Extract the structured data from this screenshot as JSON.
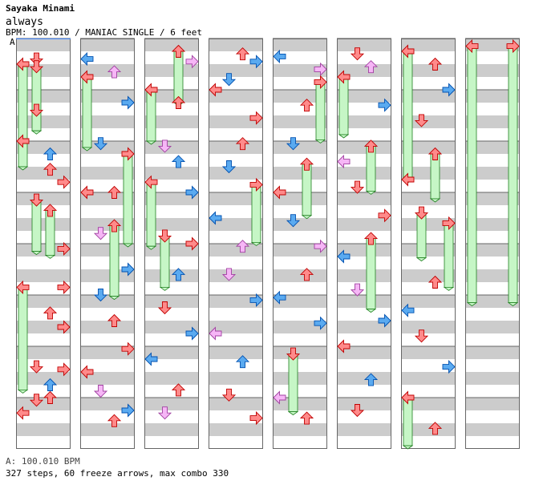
{
  "header": {
    "artist": "Sayaka Minami",
    "title": "always",
    "bpm_line": "BPM: 100.010 / MANIAC SINGLE / 6 feet",
    "marker": "A"
  },
  "footer": {
    "bpm": "A: 100.010 BPM",
    "stats": "327 steps, 60 freeze arrows, max combo 330"
  },
  "colors": {
    "red": "#ff8a8a",
    "red_stroke": "#c00000",
    "blue": "#5aaaf0",
    "blue_stroke": "#0050b0",
    "pink": "#f6b6f6",
    "pink_stroke": "#a040a0",
    "freeze_fill": "#c6f6c6",
    "freeze_stroke": "#208020",
    "stripe": "#cccccc"
  },
  "chart": {
    "lanes": [
      "left",
      "down",
      "up",
      "right"
    ],
    "columns": [
      {
        "notes": [
          {
            "t": 0.16,
            "lane": 1,
            "kind": "red"
          },
          {
            "t": 0.2,
            "lane": 0,
            "kind": "freeze",
            "len": 0.8
          },
          {
            "t": 0.22,
            "lane": 1,
            "kind": "freeze",
            "len": 0.5
          },
          {
            "t": 0.56,
            "lane": 1,
            "kind": "red"
          },
          {
            "t": 0.8,
            "lane": 0,
            "kind": "red"
          },
          {
            "t": 0.9,
            "lane": 2,
            "kind": "blue"
          },
          {
            "t": 1.02,
            "lane": 2,
            "kind": "red"
          },
          {
            "t": 1.12,
            "lane": 3,
            "kind": "red"
          },
          {
            "t": 1.26,
            "lane": 1,
            "kind": "freeze",
            "len": 0.4
          },
          {
            "t": 1.34,
            "lane": 2,
            "kind": "freeze",
            "len": 0.35
          },
          {
            "t": 1.64,
            "lane": 3,
            "kind": "red"
          },
          {
            "t": 1.94,
            "lane": 0,
            "kind": "freeze",
            "len": 0.8
          },
          {
            "t": 1.94,
            "lane": 3,
            "kind": "red"
          },
          {
            "t": 2.14,
            "lane": 2,
            "kind": "red"
          },
          {
            "t": 2.25,
            "lane": 3,
            "kind": "red"
          },
          {
            "t": 2.58,
            "lane": 3,
            "kind": "red"
          },
          {
            "t": 2.56,
            "lane": 1,
            "kind": "red"
          },
          {
            "t": 2.7,
            "lane": 2,
            "kind": "blue"
          },
          {
            "t": 2.82,
            "lane": 1,
            "kind": "red"
          },
          {
            "t": 2.92,
            "lane": 0,
            "kind": "red"
          },
          {
            "t": 2.8,
            "lane": 2,
            "kind": "red"
          }
        ]
      },
      {
        "notes": [
          {
            "t": 0.16,
            "lane": 0,
            "kind": "blue"
          },
          {
            "t": 0.26,
            "lane": 2,
            "kind": "pink"
          },
          {
            "t": 0.3,
            "lane": 0,
            "kind": "freeze",
            "len": 0.55
          },
          {
            "t": 0.5,
            "lane": 3,
            "kind": "blue"
          },
          {
            "t": 0.82,
            "lane": 1,
            "kind": "blue"
          },
          {
            "t": 0.9,
            "lane": 3,
            "kind": "freeze",
            "len": 0.7
          },
          {
            "t": 1.2,
            "lane": 2,
            "kind": "red"
          },
          {
            "t": 1.2,
            "lane": 0,
            "kind": "red"
          },
          {
            "t": 1.46,
            "lane": 2,
            "kind": "freeze",
            "len": 0.55
          },
          {
            "t": 1.52,
            "lane": 1,
            "kind": "pink"
          },
          {
            "t": 1.8,
            "lane": 3,
            "kind": "blue"
          },
          {
            "t": 2.0,
            "lane": 1,
            "kind": "blue"
          },
          {
            "t": 2.2,
            "lane": 2,
            "kind": "red"
          },
          {
            "t": 2.42,
            "lane": 3,
            "kind": "red"
          },
          {
            "t": 2.6,
            "lane": 0,
            "kind": "red"
          },
          {
            "t": 2.75,
            "lane": 1,
            "kind": "pink"
          },
          {
            "t": 2.9,
            "lane": 3,
            "kind": "blue"
          },
          {
            "t": 2.98,
            "lane": 2,
            "kind": "red"
          }
        ]
      },
      {
        "notes": [
          {
            "t": 0.1,
            "lane": 2,
            "kind": "freeze",
            "len": 0.4
          },
          {
            "t": 0.18,
            "lane": 3,
            "kind": "pink"
          },
          {
            "t": 0.4,
            "lane": 0,
            "kind": "freeze",
            "len": 0.4
          },
          {
            "t": 0.5,
            "lane": 2,
            "kind": "red"
          },
          {
            "t": 0.84,
            "lane": 1,
            "kind": "pink"
          },
          {
            "t": 0.96,
            "lane": 2,
            "kind": "blue"
          },
          {
            "t": 1.12,
            "lane": 0,
            "kind": "freeze",
            "len": 0.5
          },
          {
            "t": 1.2,
            "lane": 3,
            "kind": "blue"
          },
          {
            "t": 1.54,
            "lane": 1,
            "kind": "freeze",
            "len": 0.4
          },
          {
            "t": 1.6,
            "lane": 3,
            "kind": "red"
          },
          {
            "t": 1.84,
            "lane": 2,
            "kind": "blue"
          },
          {
            "t": 2.1,
            "lane": 1,
            "kind": "red"
          },
          {
            "t": 2.3,
            "lane": 3,
            "kind": "blue"
          },
          {
            "t": 2.5,
            "lane": 0,
            "kind": "blue"
          },
          {
            "t": 2.74,
            "lane": 2,
            "kind": "red"
          },
          {
            "t": 2.92,
            "lane": 1,
            "kind": "pink"
          }
        ]
      },
      {
        "notes": [
          {
            "t": 0.12,
            "lane": 2,
            "kind": "red"
          },
          {
            "t": 0.18,
            "lane": 3,
            "kind": "blue"
          },
          {
            "t": 0.32,
            "lane": 1,
            "kind": "blue"
          },
          {
            "t": 0.4,
            "lane": 0,
            "kind": "red"
          },
          {
            "t": 0.62,
            "lane": 3,
            "kind": "red"
          },
          {
            "t": 0.82,
            "lane": 2,
            "kind": "red"
          },
          {
            "t": 1.0,
            "lane": 1,
            "kind": "blue"
          },
          {
            "t": 1.14,
            "lane": 3,
            "kind": "freeze",
            "len": 0.45
          },
          {
            "t": 1.4,
            "lane": 0,
            "kind": "blue"
          },
          {
            "t": 1.62,
            "lane": 2,
            "kind": "pink"
          },
          {
            "t": 1.84,
            "lane": 1,
            "kind": "pink"
          },
          {
            "t": 2.04,
            "lane": 3,
            "kind": "blue"
          },
          {
            "t": 2.3,
            "lane": 0,
            "kind": "pink"
          },
          {
            "t": 2.52,
            "lane": 2,
            "kind": "blue"
          },
          {
            "t": 2.78,
            "lane": 1,
            "kind": "red"
          },
          {
            "t": 2.96,
            "lane": 3,
            "kind": "red"
          }
        ]
      },
      {
        "notes": [
          {
            "t": 0.14,
            "lane": 0,
            "kind": "blue"
          },
          {
            "t": 0.24,
            "lane": 3,
            "kind": "pink"
          },
          {
            "t": 0.34,
            "lane": 3,
            "kind": "freeze",
            "len": 0.45
          },
          {
            "t": 0.52,
            "lane": 2,
            "kind": "red"
          },
          {
            "t": 0.82,
            "lane": 1,
            "kind": "blue"
          },
          {
            "t": 0.98,
            "lane": 2,
            "kind": "freeze",
            "len": 0.4
          },
          {
            "t": 1.2,
            "lane": 0,
            "kind": "red"
          },
          {
            "t": 1.42,
            "lane": 1,
            "kind": "blue"
          },
          {
            "t": 1.62,
            "lane": 3,
            "kind": "pink"
          },
          {
            "t": 1.84,
            "lane": 2,
            "kind": "red"
          },
          {
            "t": 2.02,
            "lane": 0,
            "kind": "blue"
          },
          {
            "t": 2.22,
            "lane": 3,
            "kind": "blue"
          },
          {
            "t": 2.46,
            "lane": 1,
            "kind": "freeze",
            "len": 0.45
          },
          {
            "t": 2.8,
            "lane": 0,
            "kind": "pink"
          },
          {
            "t": 2.96,
            "lane": 2,
            "kind": "red"
          }
        ]
      },
      {
        "notes": [
          {
            "t": 0.12,
            "lane": 1,
            "kind": "red"
          },
          {
            "t": 0.22,
            "lane": 2,
            "kind": "pink"
          },
          {
            "t": 0.3,
            "lane": 0,
            "kind": "freeze",
            "len": 0.45
          },
          {
            "t": 0.52,
            "lane": 3,
            "kind": "blue"
          },
          {
            "t": 0.84,
            "lane": 2,
            "kind": "freeze",
            "len": 0.35
          },
          {
            "t": 0.96,
            "lane": 0,
            "kind": "pink"
          },
          {
            "t": 1.16,
            "lane": 1,
            "kind": "red"
          },
          {
            "t": 1.38,
            "lane": 3,
            "kind": "red"
          },
          {
            "t": 1.56,
            "lane": 2,
            "kind": "freeze",
            "len": 0.55
          },
          {
            "t": 1.7,
            "lane": 0,
            "kind": "blue"
          },
          {
            "t": 1.96,
            "lane": 1,
            "kind": "pink"
          },
          {
            "t": 2.2,
            "lane": 3,
            "kind": "blue"
          },
          {
            "t": 2.4,
            "lane": 0,
            "kind": "red"
          },
          {
            "t": 2.66,
            "lane": 2,
            "kind": "blue"
          },
          {
            "t": 2.9,
            "lane": 1,
            "kind": "red"
          }
        ]
      },
      {
        "notes": [
          {
            "t": 0.1,
            "lane": 0,
            "kind": "freeze",
            "len": 1.0
          },
          {
            "t": 0.2,
            "lane": 2,
            "kind": "red"
          },
          {
            "t": 0.4,
            "lane": 3,
            "kind": "blue"
          },
          {
            "t": 0.64,
            "lane": 1,
            "kind": "red"
          },
          {
            "t": 0.9,
            "lane": 2,
            "kind": "freeze",
            "len": 0.35
          },
          {
            "t": 1.1,
            "lane": 0,
            "kind": "red"
          },
          {
            "t": 1.36,
            "lane": 1,
            "kind": "freeze",
            "len": 0.35
          },
          {
            "t": 1.44,
            "lane": 3,
            "kind": "freeze",
            "len": 0.5
          },
          {
            "t": 1.9,
            "lane": 2,
            "kind": "red"
          },
          {
            "t": 2.12,
            "lane": 0,
            "kind": "blue"
          },
          {
            "t": 2.32,
            "lane": 1,
            "kind": "red"
          },
          {
            "t": 2.56,
            "lane": 3,
            "kind": "blue"
          },
          {
            "t": 2.8,
            "lane": 0,
            "kind": "freeze",
            "len": 0.65
          },
          {
            "t": 3.04,
            "lane": 2,
            "kind": "red"
          }
        ]
      },
      {
        "notes": [
          {
            "t": 0.06,
            "lane": 0,
            "kind": "freeze",
            "len": 2.0
          },
          {
            "t": 0.06,
            "lane": 3,
            "kind": "freeze",
            "len": 2.0
          }
        ]
      }
    ]
  }
}
